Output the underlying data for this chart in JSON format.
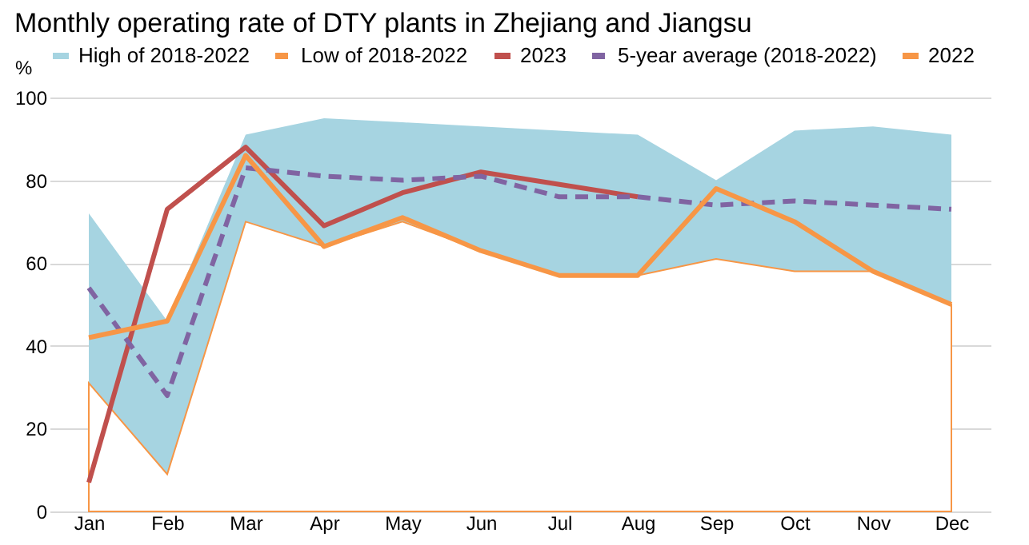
{
  "chart_data": {
    "type": "line",
    "title": "Monthly operating rate of DTY plants in Zhejiang and Jiangsu",
    "ylabel": "%",
    "categories": [
      "Jan",
      "Feb",
      "Mar",
      "Apr",
      "May",
      "Jun",
      "Jul",
      "Aug",
      "Sep",
      "Oct",
      "Nov",
      "Dec"
    ],
    "series": [
      {
        "name": "High of 2018-2022",
        "type": "area",
        "color": "#a6d4e1",
        "values": [
          72,
          46,
          91,
          95,
          94,
          93,
          92,
          91,
          80,
          92,
          93,
          91
        ]
      },
      {
        "name": "Low of 2018-2022",
        "type": "area",
        "color": "#f79646",
        "line_style": "dashed",
        "values": [
          31,
          9,
          70,
          64,
          70,
          63,
          57,
          57,
          61,
          58,
          58,
          50
        ]
      },
      {
        "name": "2023",
        "type": "line",
        "color": "#c0504d",
        "values": [
          7,
          73,
          88,
          69,
          77,
          82,
          79,
          76,
          null,
          null,
          null,
          null
        ]
      },
      {
        "name": "5-year average (2018-2022)",
        "type": "line",
        "color": "#8064a2",
        "line_style": "dashed",
        "values": [
          54,
          28,
          83,
          81,
          80,
          81,
          76,
          76,
          74,
          75,
          74,
          73
        ]
      },
      {
        "name": "2022",
        "type": "line",
        "color": "#f79646",
        "values": [
          42,
          46,
          86,
          64,
          71,
          63,
          57,
          57,
          78,
          70,
          58,
          50
        ]
      }
    ],
    "ylim": [
      0,
      100
    ],
    "yticks": [
      0,
      20,
      40,
      60,
      80,
      100
    ],
    "grid": "y",
    "legend": "top",
    "marker": "none"
  }
}
